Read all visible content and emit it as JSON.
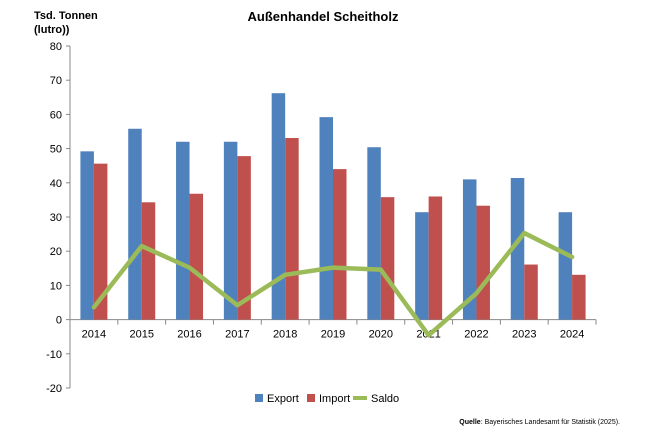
{
  "chart_data": {
    "type": "bar",
    "title": "Außenhandel Scheitholz",
    "ylabel_line1": "Tsd. Tonnen",
    "ylabel_line2": "(lutro))",
    "xlabel": "",
    "ylim": [
      -20,
      80
    ],
    "yticks": [
      -20,
      -10,
      0,
      10,
      20,
      30,
      40,
      50,
      60,
      70,
      80
    ],
    "categories": [
      "2014",
      "2015",
      "2016",
      "2017",
      "2018",
      "2019",
      "2020",
      "2021",
      "2022",
      "2023",
      "2024"
    ],
    "series": [
      {
        "name": "Export",
        "kind": "bar",
        "color": "#4F81BD",
        "values": [
          49.2,
          55.8,
          52.0,
          52.0,
          66.2,
          59.2,
          50.4,
          31.4,
          41.0,
          41.4,
          31.4
        ]
      },
      {
        "name": "Import",
        "kind": "bar",
        "color": "#C0504D",
        "values": [
          45.6,
          34.3,
          36.8,
          47.8,
          53.1,
          44.0,
          35.8,
          36.0,
          33.3,
          16.1,
          13.1
        ]
      },
      {
        "name": "Saldo",
        "kind": "line",
        "color": "#9BBB59",
        "values": [
          3.6,
          21.5,
          15.2,
          4.2,
          13.1,
          15.2,
          14.6,
          -4.6,
          7.7,
          25.3,
          18.3
        ]
      }
    ],
    "legend_position": "bottom",
    "source_label": "Quelle",
    "source_text": ": Bayerisches Landesamt für Statistik (2025)."
  }
}
